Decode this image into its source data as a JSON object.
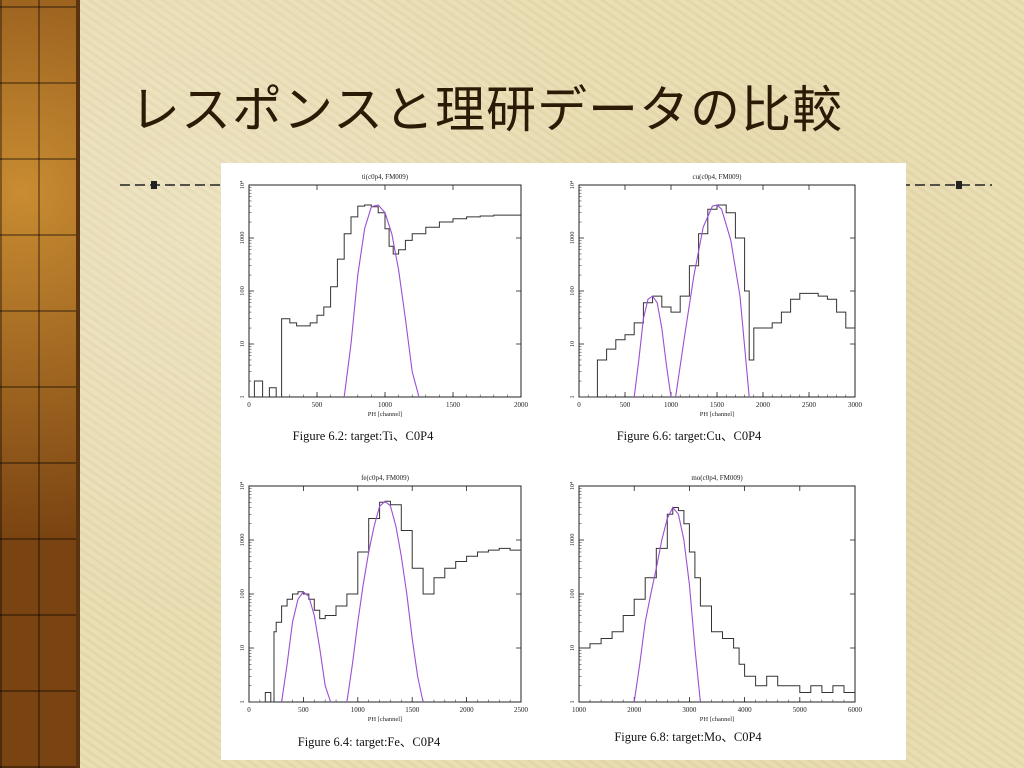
{
  "slide": {
    "title": "レスポンスと理研データの比較"
  },
  "colors": {
    "data_line": "#333333",
    "fit_line": "#9a4fd6",
    "sidebar": "#8a5018",
    "background": "#e9ddb2",
    "title": "#2b1a06"
  },
  "chart_data": [
    {
      "type": "line",
      "title": "ti(c0p4, FM009)",
      "xlabel": "PH [channel]",
      "caption": "Figure 6.2: target:Ti、C0P4",
      "xlim": [
        0,
        2000
      ],
      "ylim": [
        1,
        10000
      ],
      "yscale": "log",
      "x_ticks": [
        "0",
        "500",
        "1000",
        "1500",
        "2000"
      ],
      "y_ticks": [
        "1",
        "10",
        "100",
        "1000",
        "10⁴"
      ],
      "series": [
        {
          "role": "data",
          "x": [
            0,
            40,
            100,
            150,
            200,
            230,
            240,
            270,
            300,
            350,
            400,
            450,
            500,
            550,
            600,
            650,
            700,
            750,
            800,
            850,
            900,
            950,
            1000,
            1030,
            1060,
            1100,
            1150,
            1200,
            1300,
            1400,
            1500,
            1600,
            1700,
            1800,
            1900,
            2000
          ],
          "y": [
            1,
            2,
            1,
            1.5,
            1,
            1,
            30,
            30,
            25,
            22,
            22,
            25,
            35,
            50,
            120,
            400,
            1200,
            2500,
            4000,
            4200,
            3900,
            3000,
            1500,
            700,
            500,
            600,
            900,
            1200,
            1600,
            2000,
            2300,
            2500,
            2600,
            2700,
            2700,
            2700
          ]
        },
        {
          "role": "fit",
          "x": [
            700,
            750,
            800,
            850,
            900,
            950,
            1000,
            1050,
            1100,
            1150,
            1200,
            1250
          ],
          "y": [
            1,
            10,
            200,
            1500,
            3900,
            4200,
            3000,
            1200,
            250,
            30,
            3,
            1
          ]
        }
      ]
    },
    {
      "type": "line",
      "title": "cu(c0p4, FM009)",
      "xlabel": "PH [channel]",
      "caption": "Figure 6.6: target:Cu、C0P4",
      "xlim": [
        0,
        3000
      ],
      "ylim": [
        1,
        10000
      ],
      "yscale": "log",
      "x_ticks": [
        "0",
        "500",
        "1000",
        "1500",
        "2000",
        "2500",
        "3000"
      ],
      "y_ticks": [
        "1",
        "10",
        "100",
        "1000",
        "10⁴"
      ],
      "series": [
        {
          "role": "data",
          "x": [
            0,
            50,
            150,
            200,
            300,
            400,
            500,
            600,
            700,
            800,
            900,
            1000,
            1100,
            1200,
            1300,
            1400,
            1500,
            1600,
            1700,
            1800,
            1850,
            1900,
            2000,
            2100,
            2200,
            2300,
            2400,
            2500,
            2600,
            2700,
            2800,
            2900,
            3000
          ],
          "y": [
            1,
            1,
            1,
            5,
            8,
            12,
            15,
            25,
            60,
            80,
            50,
            40,
            80,
            300,
            1200,
            3500,
            4200,
            3000,
            1000,
            100,
            5,
            20,
            20,
            25,
            40,
            70,
            90,
            90,
            80,
            70,
            40,
            20,
            10
          ]
        },
        {
          "role": "fit",
          "x": [
            600,
            650,
            700,
            750,
            800,
            850,
            900,
            950,
            1000
          ],
          "y": [
            1,
            5,
            30,
            70,
            80,
            60,
            20,
            4,
            1
          ]
        },
        {
          "role": "fit",
          "x": [
            1050,
            1150,
            1250,
            1350,
            1450,
            1500,
            1550,
            1650,
            1750,
            1850
          ],
          "y": [
            1,
            15,
            200,
            1600,
            4000,
            4200,
            3500,
            900,
            80,
            1
          ]
        }
      ]
    },
    {
      "type": "line",
      "title": "fe(c0p4, FM009)",
      "xlabel": "PH [channel]",
      "caption": "Figure 6.4: target:Fe、C0P4",
      "xlim": [
        0,
        2500
      ],
      "ylim": [
        1,
        10000
      ],
      "yscale": "log",
      "x_ticks": [
        "0",
        "500",
        "1000",
        "1500",
        "2000",
        "2500"
      ],
      "y_ticks": [
        "1",
        "10",
        "100",
        "1000",
        "10⁴"
      ],
      "series": [
        {
          "role": "data",
          "x": [
            0,
            100,
            150,
            200,
            230,
            250,
            300,
            350,
            400,
            450,
            500,
            550,
            600,
            650,
            700,
            800,
            900,
            1000,
            1100,
            1200,
            1250,
            1300,
            1400,
            1500,
            1600,
            1700,
            1800,
            1900,
            2000,
            2100,
            2200,
            2300,
            2400,
            2500
          ],
          "y": [
            1,
            1,
            1.5,
            1,
            20,
            30,
            60,
            80,
            100,
            110,
            100,
            80,
            50,
            35,
            40,
            60,
            100,
            600,
            2500,
            5000,
            5200,
            4500,
            1500,
            300,
            100,
            200,
            300,
            400,
            500,
            600,
            650,
            700,
            650,
            600
          ]
        },
        {
          "role": "fit",
          "x": [
            300,
            350,
            400,
            450,
            500,
            550,
            600,
            650,
            700,
            750
          ],
          "y": [
            1,
            5,
            30,
            80,
            110,
            90,
            40,
            10,
            2,
            1
          ]
        },
        {
          "role": "fit",
          "x": [
            900,
            950,
            1000,
            1050,
            1100,
            1150,
            1200,
            1250,
            1300,
            1350,
            1400,
            1450,
            1500,
            1550,
            1600
          ],
          "y": [
            1,
            5,
            30,
            150,
            600,
            1800,
            4200,
            5200,
            4300,
            1800,
            500,
            100,
            15,
            3,
            1
          ]
        }
      ]
    },
    {
      "type": "line",
      "title": "mo(c0p4, FM009)",
      "xlabel": "PH [channel]",
      "caption": "Figure 6.8: target:Mo、C0P4",
      "xlim": [
        1000,
        6000
      ],
      "ylim": [
        1,
        10000
      ],
      "yscale": "log",
      "x_ticks": [
        "1000",
        "2000",
        "3000",
        "4000",
        "5000",
        "6000"
      ],
      "y_ticks": [
        "1",
        "10",
        "100",
        "1000",
        "10⁴"
      ],
      "series": [
        {
          "role": "data",
          "x": [
            1000,
            1200,
            1400,
            1600,
            1800,
            2000,
            2200,
            2400,
            2600,
            2700,
            2800,
            2900,
            3000,
            3100,
            3200,
            3400,
            3600,
            3800,
            3900,
            4000,
            4200,
            4400,
            4600,
            4800,
            5000,
            5200,
            5400,
            5600,
            5800,
            6000
          ],
          "y": [
            10,
            12,
            15,
            20,
            40,
            80,
            200,
            700,
            3000,
            4000,
            3500,
            2000,
            600,
            200,
            60,
            20,
            15,
            10,
            5,
            3,
            2,
            3,
            2,
            2,
            1.5,
            2,
            1.5,
            2,
            1.5,
            1.5
          ]
        },
        {
          "role": "fit",
          "x": [
            2000,
            2100,
            2200,
            2300,
            2400,
            2500,
            2600,
            2700,
            2800,
            2900,
            3000,
            3100,
            3200
          ],
          "y": [
            1,
            5,
            30,
            100,
            300,
            1000,
            2500,
            4000,
            3000,
            1000,
            150,
            10,
            1
          ]
        }
      ]
    }
  ]
}
